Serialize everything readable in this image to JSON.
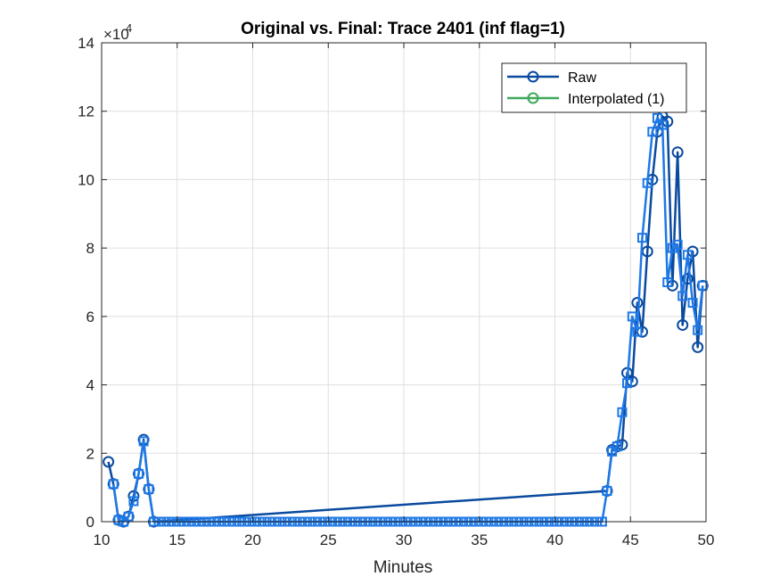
{
  "chart_data": {
    "type": "line",
    "title": "Original vs. Final: Trace 2401 (inf flag=1)",
    "xlabel": "Minutes",
    "ylabel": "",
    "xlim": [
      10,
      50
    ],
    "ylim": [
      0,
      140000
    ],
    "y_exponent_label": "×10",
    "y_exponent_power": "4",
    "x_ticks": [
      10,
      15,
      20,
      25,
      30,
      35,
      40,
      45,
      50
    ],
    "y_ticks": [
      0,
      20000,
      40000,
      60000,
      80000,
      100000,
      120000,
      140000
    ],
    "y_tick_labels": [
      "0",
      "2",
      "4",
      "6",
      "8",
      "10",
      "12",
      "14"
    ],
    "x_tick_labels": [
      "10",
      "15",
      "20",
      "25",
      "30",
      "35",
      "40",
      "45",
      "50"
    ],
    "grid": true,
    "legend_position": "top-right",
    "colors": {
      "raw": "#0a4a9e",
      "interpolated": "#3fa85a",
      "final": "#1e78e6",
      "grid": "#dfdfdf",
      "axis": "#262626"
    },
    "series": [
      {
        "name": "Raw",
        "marker": "circle",
        "x": [
          10.45,
          10.78,
          11.12,
          11.45,
          11.78,
          12.12,
          12.45,
          12.78,
          13.12,
          13.45,
          43.45,
          43.78,
          44.12,
          44.45,
          44.78,
          45.12,
          45.45,
          45.78,
          46.12,
          46.45,
          46.78,
          47.12,
          47.45,
          47.78,
          48.12,
          48.45,
          48.78,
          49.12,
          49.45,
          49.78
        ],
        "y": [
          17500,
          11000,
          500,
          0,
          1500,
          7500,
          14000,
          24000,
          9500,
          0,
          9000,
          21000,
          22000,
          22500,
          43500,
          41000,
          64000,
          55500,
          79000,
          100000,
          114000,
          118500,
          117000,
          69000,
          108000,
          57500,
          71000,
          79000,
          51000,
          69000
        ]
      },
      {
        "name": "Interpolated (1)",
        "marker": "circle",
        "x": [],
        "y": []
      },
      {
        "name": "",
        "marker": "square",
        "x": [
          10.78,
          11.12,
          11.45,
          11.78,
          12.12,
          12.45,
          12.78,
          13.12,
          13.45,
          13.78,
          14.12,
          14.45,
          14.78,
          15.12,
          15.45,
          15.78,
          16.12,
          16.45,
          16.78,
          17.12,
          17.45,
          17.78,
          18.12,
          18.45,
          18.78,
          19.12,
          19.45,
          19.78,
          20.12,
          20.45,
          20.78,
          21.12,
          21.45,
          21.78,
          22.12,
          22.45,
          22.78,
          23.12,
          23.45,
          23.78,
          24.12,
          24.45,
          24.78,
          25.12,
          25.45,
          25.78,
          26.12,
          26.45,
          26.78,
          27.12,
          27.45,
          27.78,
          28.12,
          28.45,
          28.78,
          29.12,
          29.45,
          29.78,
          30.12,
          30.45,
          30.78,
          31.12,
          31.45,
          31.78,
          32.12,
          32.45,
          32.78,
          33.12,
          33.45,
          33.78,
          34.12,
          34.45,
          34.78,
          35.12,
          35.45,
          35.78,
          36.12,
          36.45,
          36.78,
          37.12,
          37.45,
          37.78,
          38.12,
          38.45,
          38.78,
          39.12,
          39.45,
          39.78,
          40.12,
          40.45,
          40.78,
          41.12,
          41.45,
          41.78,
          42.12,
          42.45,
          42.78,
          43.12,
          43.45,
          43.78,
          44.12,
          44.45,
          44.78,
          45.12,
          45.45,
          45.78,
          46.12,
          46.45,
          46.78,
          47.12,
          47.45,
          47.78,
          48.12,
          48.45,
          48.78,
          49.12,
          49.45,
          49.78
        ],
        "y": [
          11000,
          500,
          0,
          1500,
          6000,
          14000,
          23500,
          9500,
          0,
          0,
          0,
          0,
          0,
          0,
          0,
          0,
          0,
          0,
          0,
          0,
          0,
          0,
          0,
          0,
          0,
          0,
          0,
          0,
          0,
          0,
          0,
          0,
          0,
          0,
          0,
          0,
          0,
          0,
          0,
          0,
          0,
          0,
          0,
          0,
          0,
          0,
          0,
          0,
          0,
          0,
          0,
          0,
          0,
          0,
          0,
          0,
          0,
          0,
          0,
          0,
          0,
          0,
          0,
          0,
          0,
          0,
          0,
          0,
          0,
          0,
          0,
          0,
          0,
          0,
          0,
          0,
          0,
          0,
          0,
          0,
          0,
          0,
          0,
          0,
          0,
          0,
          0,
          0,
          0,
          0,
          0,
          0,
          0,
          0,
          0,
          0,
          0,
          0,
          9000,
          20500,
          22000,
          32000,
          40500,
          60000,
          55500,
          83000,
          99000,
          114000,
          118000,
          116000,
          70000,
          80000,
          81000,
          66000,
          78000,
          64000,
          56000,
          69000
        ]
      }
    ]
  }
}
